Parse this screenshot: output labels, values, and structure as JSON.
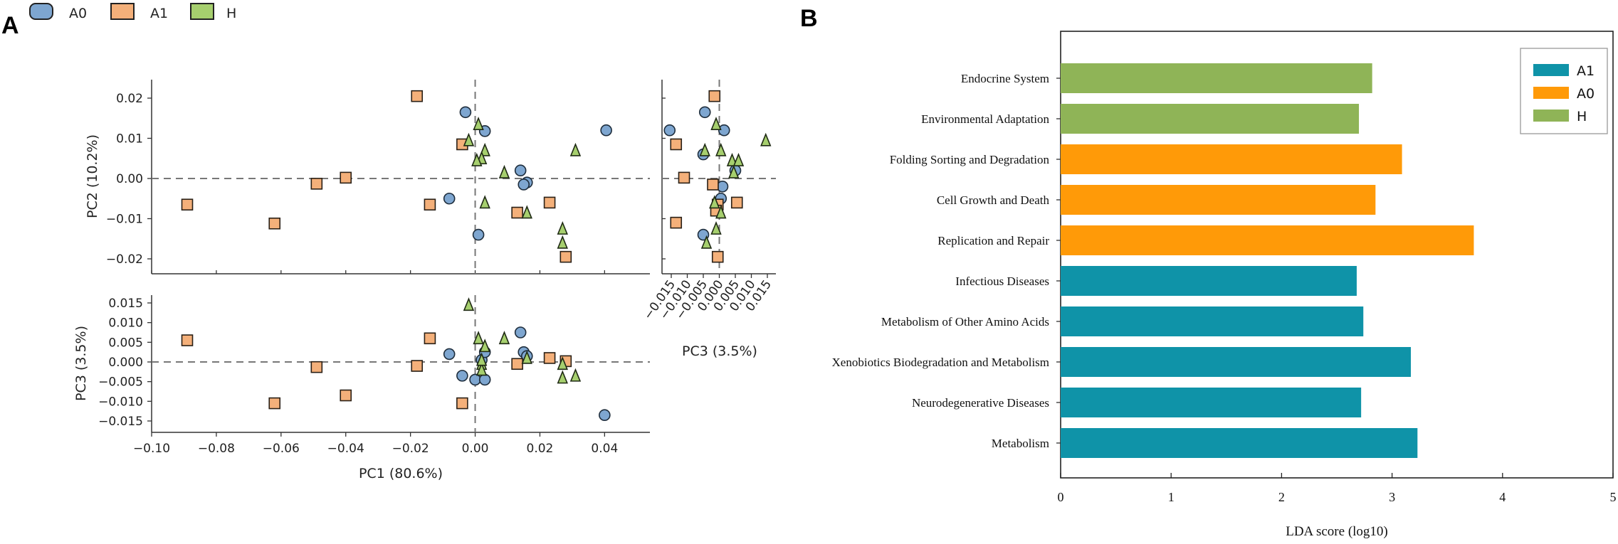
{
  "colors": {
    "A0_pca": "#7ea6d0",
    "A1_pca": "#f4b07a",
    "H_pca": "#a6cf6e",
    "A1_lda": "#0f93a8",
    "A0_lda": "#ff9a08",
    "H_lda": "#8fb457"
  },
  "panelA": {
    "letter": "A",
    "legend": [
      {
        "label": "A0",
        "shape": "circle",
        "color_key": "A0_pca"
      },
      {
        "label": "A1",
        "shape": "square",
        "color_key": "A1_pca"
      },
      {
        "label": "H",
        "shape": "triangle",
        "color_key": "H_pca"
      }
    ]
  },
  "panelB": {
    "letter": "B"
  },
  "chart_data": [
    {
      "id": "pc1_pc2",
      "type": "scatter",
      "title": "",
      "xlabel": "",
      "ylabel": "PC2 (10.2%)",
      "xlim": [
        -0.1,
        0.054
      ],
      "ylim": [
        -0.024,
        0.025
      ],
      "x_ticks": [],
      "y_ticks": [
        -0.02,
        -0.01,
        0.0,
        0.01,
        0.02
      ],
      "y_tick_labels": [
        "−0.02",
        "−0.01",
        "0.00",
        "0.01",
        "0.02"
      ],
      "grid": false,
      "reference_lines": "dashed at x=0 and y=0",
      "series": [
        {
          "name": "A0",
          "shape": "circle",
          "points": [
            [
              -0.003,
              0.0165
            ],
            [
              0.003,
              0.0118
            ],
            [
              0.0405,
              0.012
            ],
            [
              0.014,
              0.002
            ],
            [
              0.016,
              -0.001
            ],
            [
              0.015,
              -0.0015
            ],
            [
              -0.008,
              -0.005
            ],
            [
              0.001,
              -0.014
            ]
          ]
        },
        {
          "name": "A1",
          "shape": "square",
          "points": [
            [
              -0.089,
              -0.0065
            ],
            [
              -0.062,
              -0.0112
            ],
            [
              -0.049,
              -0.0013
            ],
            [
              -0.04,
              0.0002
            ],
            [
              -0.018,
              0.0205
            ],
            [
              -0.014,
              -0.0065
            ],
            [
              -0.004,
              0.0085
            ],
            [
              0.013,
              -0.0085
            ],
            [
              0.023,
              -0.006
            ],
            [
              0.028,
              -0.0195
            ]
          ]
        },
        {
          "name": "H",
          "shape": "triangle",
          "points": [
            [
              -0.002,
              0.0095
            ],
            [
              0.001,
              0.0135
            ],
            [
              0.003,
              0.007
            ],
            [
              0.002,
              0.005
            ],
            [
              0.0005,
              0.0045
            ],
            [
              0.009,
              0.0015
            ],
            [
              0.031,
              0.007
            ],
            [
              0.003,
              -0.006
            ],
            [
              0.016,
              -0.0085
            ],
            [
              0.027,
              -0.0125
            ],
            [
              0.027,
              -0.016
            ]
          ]
        }
      ]
    },
    {
      "id": "pc3_pc2",
      "type": "scatter",
      "title": "",
      "xlabel": "PC3 (3.5%)",
      "ylabel": "",
      "xlim": [
        -0.017,
        0.017
      ],
      "ylim": [
        -0.024,
        0.025
      ],
      "x_ticks": [
        -0.015,
        -0.01,
        -0.005,
        0.0,
        0.005,
        0.01,
        0.015
      ],
      "x_tick_labels": [
        "−0.015",
        "−0.010",
        "−0.005",
        "0.000",
        "0.005",
        "0.010",
        "0.015"
      ],
      "grid": false,
      "reference_lines": "dashed at x=0 and y=0",
      "series": [
        {
          "name": "A0",
          "shape": "circle",
          "points": [
            [
              -0.0155,
              0.012
            ],
            [
              -0.0045,
              0.0165
            ],
            [
              0.0015,
              0.012
            ],
            [
              -0.005,
              0.006
            ],
            [
              0.005,
              0.002
            ],
            [
              0.001,
              -0.002
            ],
            [
              0.0005,
              -0.005
            ],
            [
              -0.005,
              -0.014
            ]
          ]
        },
        {
          "name": "A1",
          "shape": "square",
          "points": [
            [
              -0.0135,
              0.0085
            ],
            [
              -0.0015,
              0.0205
            ],
            [
              -0.011,
              0.0002
            ],
            [
              -0.002,
              -0.0015
            ],
            [
              -0.0135,
              -0.011
            ],
            [
              -0.0005,
              -0.0065
            ],
            [
              0.0055,
              -0.006
            ],
            [
              -0.0005,
              -0.0195
            ],
            [
              -0.001,
              -0.008
            ]
          ]
        },
        {
          "name": "H",
          "shape": "triangle",
          "points": [
            [
              0.0145,
              0.0095
            ],
            [
              -0.001,
              0.0135
            ],
            [
              0.0005,
              0.007
            ],
            [
              -0.0045,
              0.007
            ],
            [
              0.004,
              0.0045
            ],
            [
              0.006,
              0.0045
            ],
            [
              0.0045,
              0.0015
            ],
            [
              -0.0015,
              -0.006
            ],
            [
              0.0005,
              -0.0085
            ],
            [
              -0.001,
              -0.0125
            ],
            [
              -0.004,
              -0.016
            ]
          ]
        }
      ]
    },
    {
      "id": "pc1_pc3",
      "type": "scatter",
      "title": "",
      "xlabel": "PC1 (80.6%)",
      "ylabel": "PC3 (3.5%)",
      "xlim": [
        -0.1,
        0.054
      ],
      "ylim": [
        -0.017,
        0.017
      ],
      "x_ticks": [
        -0.1,
        -0.08,
        -0.06,
        -0.04,
        -0.02,
        0.0,
        0.02,
        0.04
      ],
      "x_tick_labels": [
        "−0.10",
        "−0.08",
        "−0.06",
        "−0.04",
        "−0.02",
        "0.00",
        "0.02",
        "0.04"
      ],
      "y_ticks": [
        -0.015,
        -0.01,
        -0.005,
        0.0,
        0.005,
        0.01,
        0.015
      ],
      "y_tick_labels": [
        "−0.015",
        "−0.010",
        "−0.005",
        "0.000",
        "0.005",
        "0.010",
        "0.015"
      ],
      "grid": false,
      "reference_lines": "dashed at x=0 and y=0",
      "series": [
        {
          "name": "A0",
          "shape": "circle",
          "points": [
            [
              -0.008,
              0.002
            ],
            [
              -0.004,
              -0.0035
            ],
            [
              0.0,
              -0.0045
            ],
            [
              0.003,
              -0.0045
            ],
            [
              0.002,
              0.0005
            ],
            [
              0.003,
              0.0025
            ],
            [
              0.014,
              0.0075
            ],
            [
              0.015,
              0.0025
            ],
            [
              0.016,
              0.0015
            ],
            [
              0.04,
              -0.0135
            ]
          ]
        },
        {
          "name": "A1",
          "shape": "square",
          "points": [
            [
              -0.089,
              0.0055
            ],
            [
              -0.062,
              -0.0105
            ],
            [
              -0.049,
              -0.0013
            ],
            [
              -0.04,
              -0.0085
            ],
            [
              -0.018,
              -0.001
            ],
            [
              -0.014,
              0.006
            ],
            [
              -0.004,
              -0.0105
            ],
            [
              0.013,
              -0.0005
            ],
            [
              0.023,
              0.001
            ],
            [
              0.028,
              0.0002
            ]
          ]
        },
        {
          "name": "H",
          "shape": "triangle",
          "points": [
            [
              -0.002,
              0.0145
            ],
            [
              0.001,
              0.006
            ],
            [
              0.003,
              0.004
            ],
            [
              0.002,
              -0.0005
            ],
            [
              0.009,
              0.006
            ],
            [
              0.002,
              -0.002
            ],
            [
              0.016,
              0.001
            ],
            [
              0.027,
              -0.0005
            ],
            [
              0.027,
              -0.004
            ],
            [
              0.031,
              -0.0035
            ],
            [
              0.002,
              0.0005
            ]
          ]
        }
      ]
    },
    {
      "id": "lda",
      "type": "bar",
      "orientation": "horizontal",
      "title": "",
      "xlabel": "LDA score (log10)",
      "ylabel": "",
      "xlim": [
        0,
        5
      ],
      "x_ticks": [
        0,
        1,
        2,
        3,
        4,
        5
      ],
      "grid": false,
      "legend_position": "top-right",
      "legend": [
        {
          "label": "A1",
          "color_key": "A1_lda"
        },
        {
          "label": "A0",
          "color_key": "A0_lda"
        },
        {
          "label": "H",
          "color_key": "H_lda"
        }
      ],
      "bars": [
        {
          "label": "Endocrine System",
          "value": 2.82,
          "group": "H"
        },
        {
          "label": "Environmental Adaptation",
          "value": 2.7,
          "group": "H"
        },
        {
          "label": "Folding Sorting and Degradation",
          "value": 3.09,
          "group": "A0"
        },
        {
          "label": "Cell Growth and Death",
          "value": 2.85,
          "group": "A0"
        },
        {
          "label": "Replication and Repair",
          "value": 3.74,
          "group": "A0"
        },
        {
          "label": "Infectious Diseases",
          "value": 2.68,
          "group": "A1"
        },
        {
          "label": "Metabolism of Other Amino Acids",
          "value": 2.74,
          "group": "A1"
        },
        {
          "label": "Xenobiotics Biodegradation and Metabolism",
          "value": 3.17,
          "group": "A1"
        },
        {
          "label": "Neurodegenerative Diseases",
          "value": 2.72,
          "group": "A1"
        },
        {
          "label": "Metabolism",
          "value": 3.23,
          "group": "A1"
        }
      ]
    }
  ]
}
